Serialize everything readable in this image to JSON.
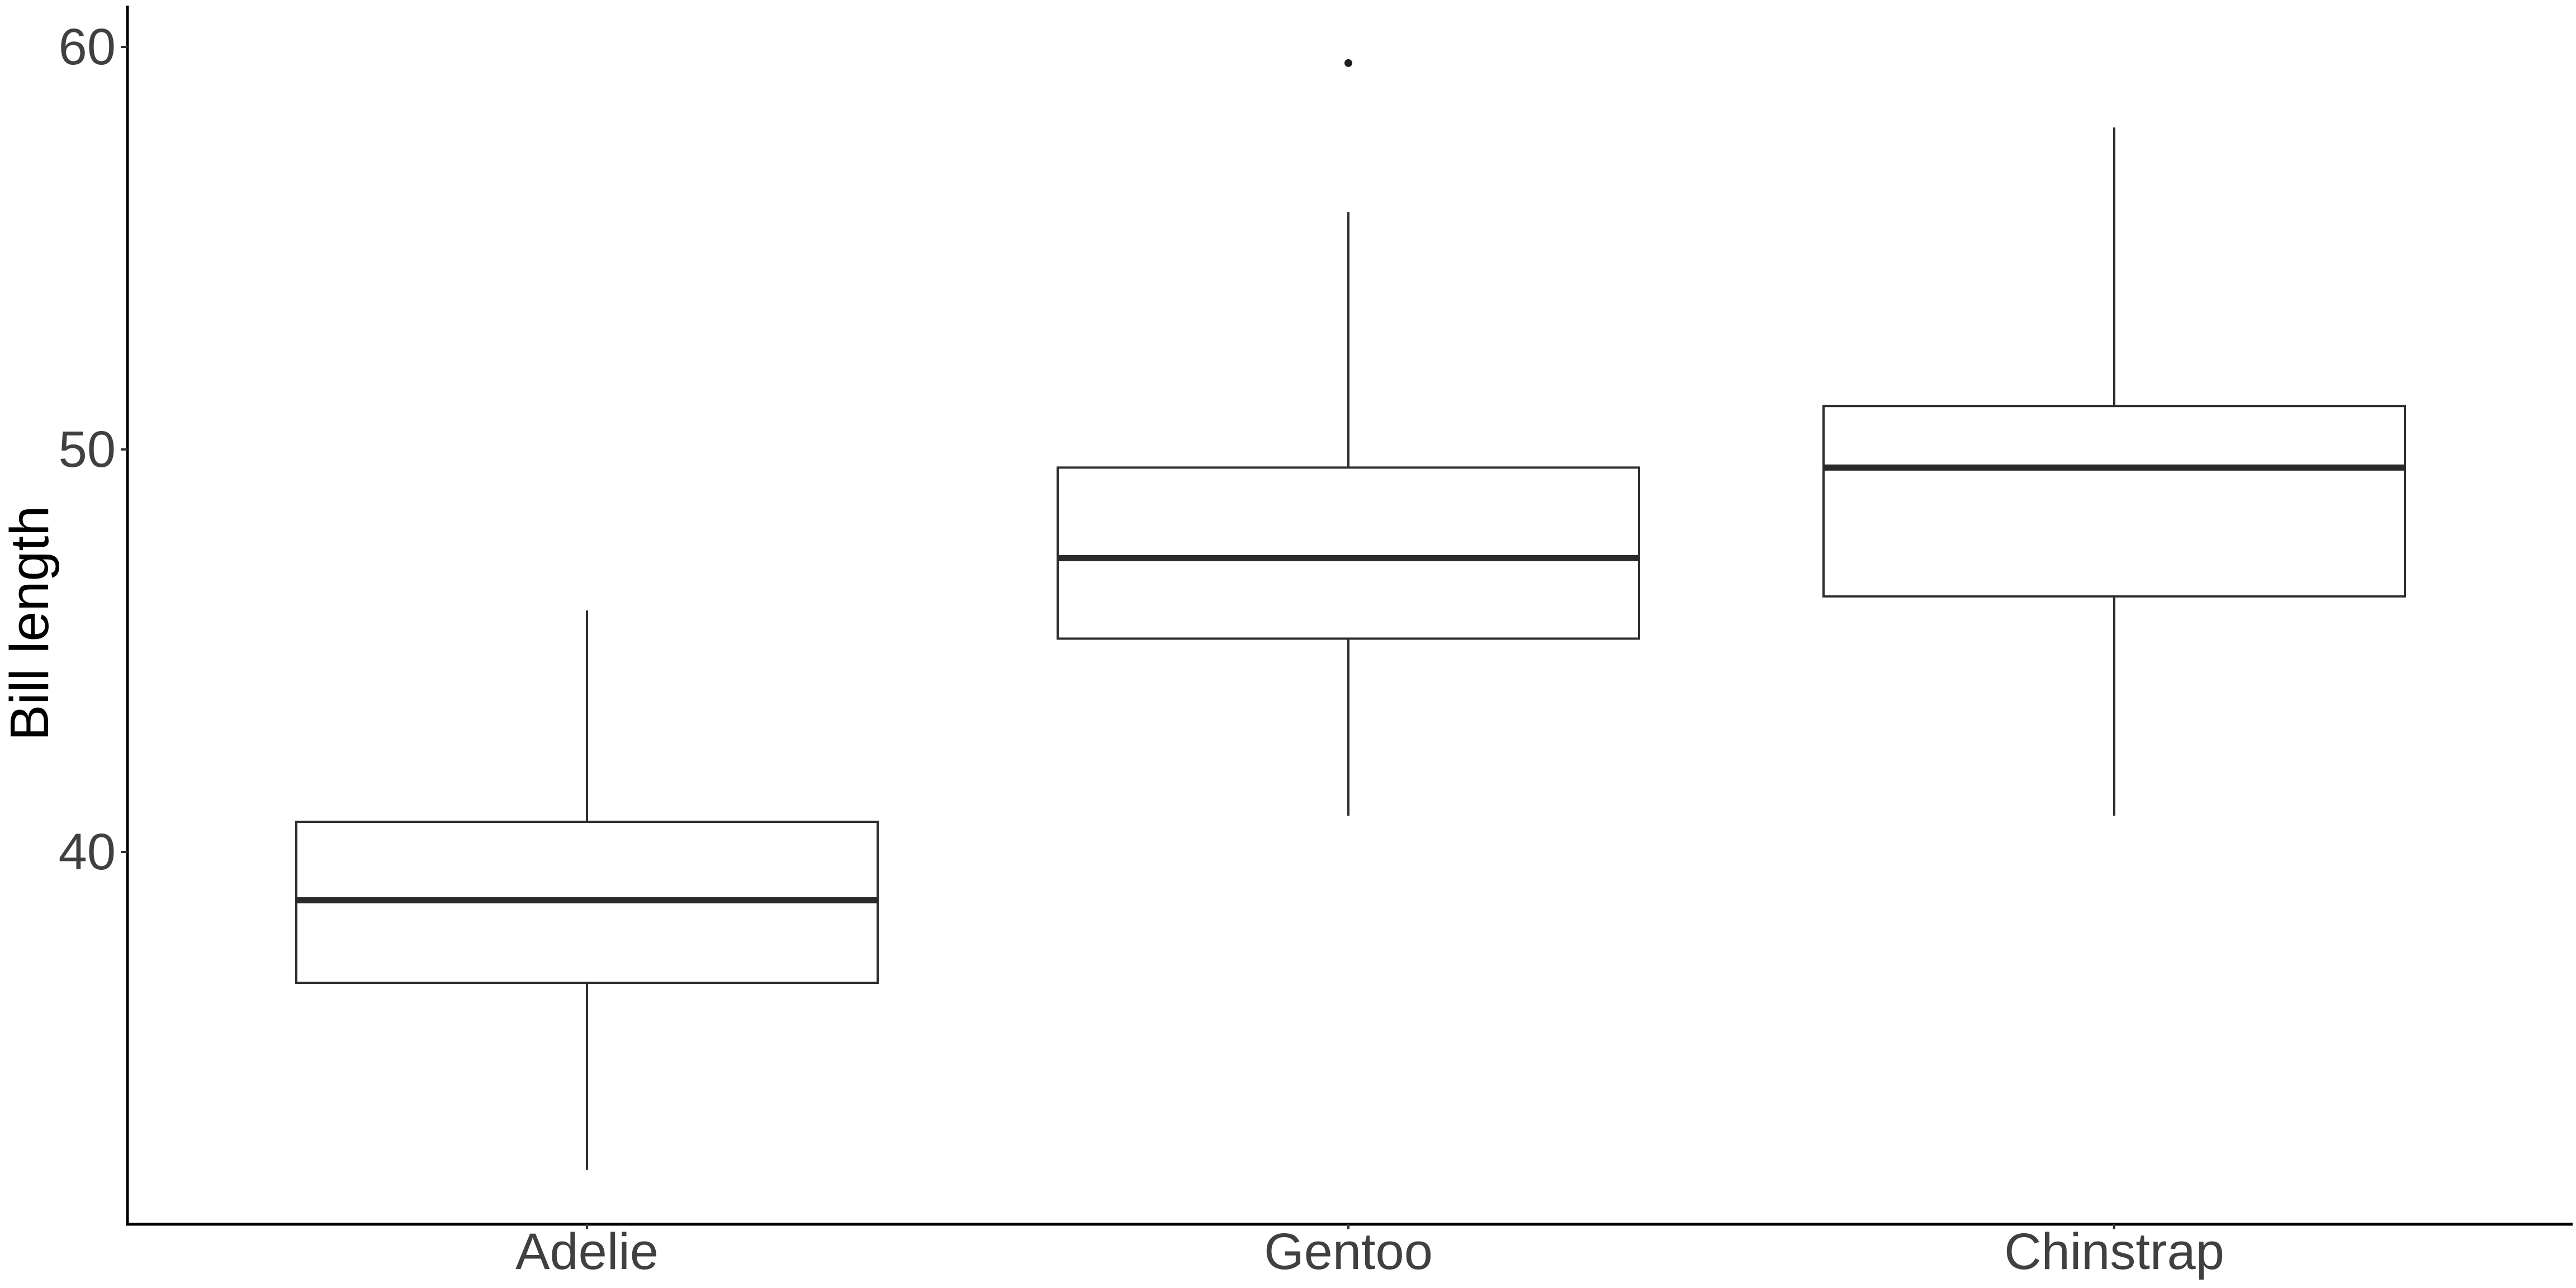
{
  "chart_data": {
    "type": "boxplot",
    "title": "",
    "xlabel": "",
    "ylabel": "Bill length",
    "categories": [
      "Adelie",
      "Gentoo",
      "Chinstrap"
    ],
    "y_ticks": [
      40,
      50,
      60
    ],
    "ylim": [
      30.75,
      61.0
    ],
    "grid": false,
    "legend_position": "none",
    "series": [
      {
        "name": "Adelie",
        "min": 32.1,
        "q1": 36.75,
        "median": 38.8,
        "q3": 40.75,
        "max": 46.0,
        "outliers": []
      },
      {
        "name": "Gentoo",
        "min": 40.9,
        "q1": 45.3,
        "median": 47.3,
        "q3": 49.55,
        "max": 55.9,
        "outliers": [
          59.6
        ]
      },
      {
        "name": "Chinstrap",
        "min": 40.9,
        "q1": 46.35,
        "median": 49.55,
        "q3": 51.08,
        "max": 58.0,
        "outliers": []
      }
    ]
  },
  "colors": {
    "background": "#ffffff",
    "axis_line": "#000000",
    "tick_mark": "#333333",
    "tick_label": "#404040",
    "category_label": "#404040",
    "axis_title": "#000000",
    "box_border": "#2e2e2e",
    "box_fill": "#ffffff",
    "median_line": "#2a2a2a",
    "whisker": "#2e2e2e",
    "outlier": "#1f1f1f"
  }
}
